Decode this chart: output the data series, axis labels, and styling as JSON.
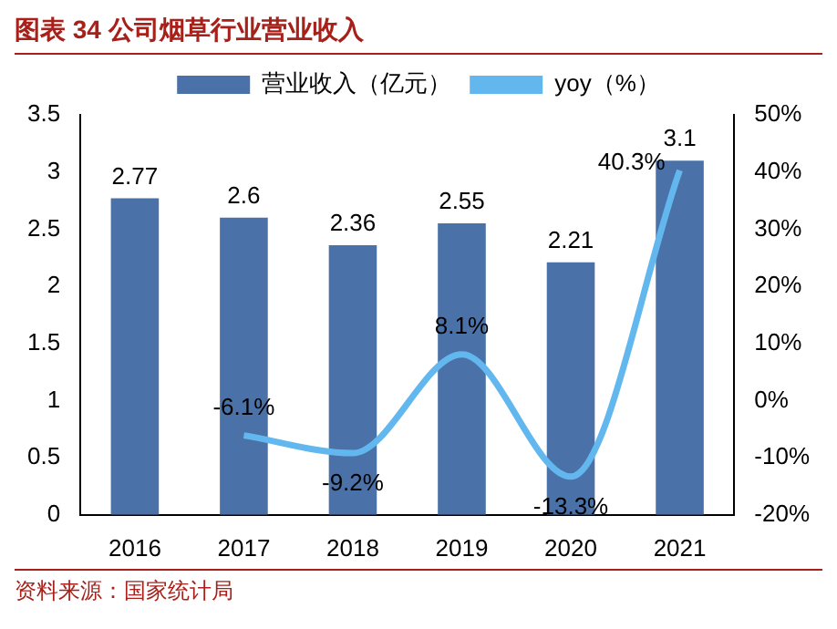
{
  "chart_data": {
    "type": "bar",
    "title": "图表 34 公司烟草行业营业收入",
    "annotations": [
      "资料来源：国家统计局"
    ],
    "categories": [
      "2016",
      "2017",
      "2018",
      "2019",
      "2020",
      "2021"
    ],
    "series": [
      {
        "name": "营业收入（亿元）",
        "color": "#4a72a8",
        "values": [
          2.77,
          2.6,
          2.36,
          2.55,
          2.21,
          3.1
        ],
        "value_labels": [
          "2.77",
          "2.6",
          "2.36",
          "2.55",
          "2.21",
          "3.1"
        ]
      },
      {
        "name": "yoy（%）",
        "type": "line",
        "axis": "y2",
        "color": "#62b8ee",
        "values": [
          null,
          -6.1,
          -9.2,
          8.1,
          -13.3,
          40.3
        ],
        "value_labels": [
          null,
          "-6.1%",
          "-9.2%",
          "8.1%",
          "-13.3%",
          "40.3%"
        ]
      }
    ],
    "ylim": [
      0,
      3.5
    ],
    "yticks": [
      0,
      0.5,
      1,
      1.5,
      2,
      2.5,
      3,
      3.5
    ],
    "y2lim": [
      -20,
      50
    ],
    "y2ticks": [
      {
        "value": -20,
        "label": "-20%"
      },
      {
        "value": -10,
        "label": "-10%"
      },
      {
        "value": 0,
        "label": "0%"
      },
      {
        "value": 10,
        "label": "10%"
      },
      {
        "value": 20,
        "label": "20%"
      },
      {
        "value": 30,
        "label": "30%"
      },
      {
        "value": 40,
        "label": "40%"
      },
      {
        "value": 50,
        "label": "50%"
      }
    ],
    "grid": false,
    "legend": "top",
    "marker": "none",
    "line_style": "solid"
  }
}
